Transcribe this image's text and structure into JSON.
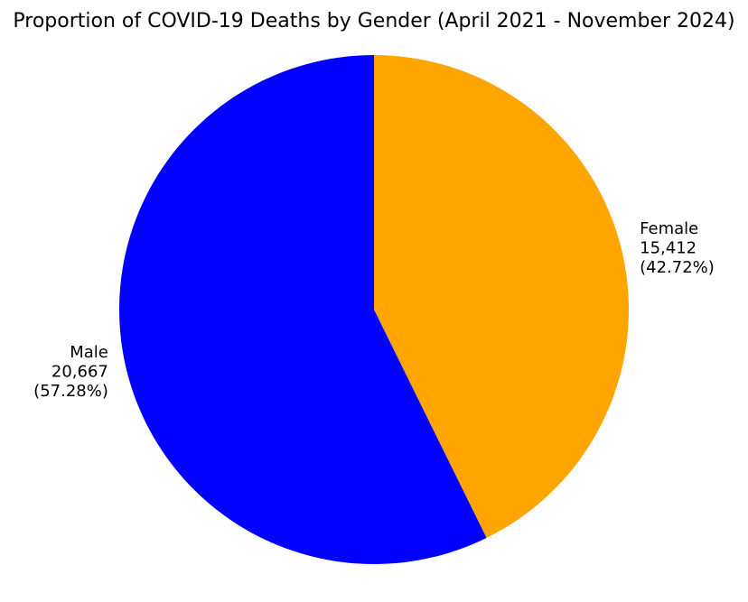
{
  "chart_data": {
    "type": "pie",
    "title": "Proportion of COVID-19 Deaths by Gender (April 2021 - November 2024)",
    "categories": [
      "Female",
      "Male"
    ],
    "values": [
      15412,
      20667
    ],
    "display_values": [
      "15,412",
      "20,667"
    ],
    "percent_labels": [
      "(42.72%)",
      "(57.28%)"
    ],
    "percentages": [
      42.72,
      57.28
    ],
    "colors": [
      "#FFA500",
      "#0000FF"
    ],
    "start_angle_deg": 90,
    "direction": "clockwise",
    "legend": "none"
  }
}
